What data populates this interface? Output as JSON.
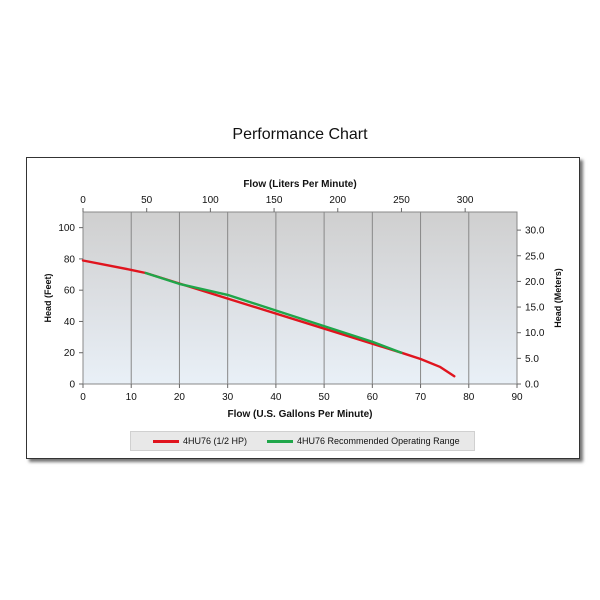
{
  "page": {
    "title": "Performance Chart"
  },
  "chart_data": {
    "type": "line",
    "xlabel": "Flow (U.S. Gallons Per Minute)",
    "x2label": "Flow (Liters Per Minute)",
    "ylabel": "Head (Feet)",
    "y2label": "Head (Meters)",
    "xlim": [
      0,
      90
    ],
    "ylim": [
      0,
      110
    ],
    "x2lim": [
      0,
      340.7
    ],
    "y2lim": [
      0,
      33.53
    ],
    "xticks": [
      "0",
      "10",
      "20",
      "30",
      "40",
      "50",
      "60",
      "70",
      "80",
      "90"
    ],
    "yticks": [
      "0",
      "20",
      "40",
      "60",
      "80",
      "100"
    ],
    "x2ticks": [
      "0",
      "50",
      "100",
      "150",
      "200",
      "250",
      "300"
    ],
    "y2ticks": [
      "0.0",
      "5.0",
      "10.0",
      "15.0",
      "20.0",
      "25.0",
      "30.0"
    ],
    "grid": true,
    "legend_position": "bottom",
    "series": [
      {
        "name": "4HU76 (1/2 HP)",
        "color": "#e0141e",
        "x": [
          0,
          5,
          10,
          13,
          66,
          70,
          74,
          77
        ],
        "y": [
          79,
          76,
          73,
          71,
          20,
          16,
          11,
          5
        ]
      },
      {
        "name": "4HU76 Recommended Operating Range",
        "color": "#1fa64a",
        "x": [
          13,
          20,
          30,
          40,
          50,
          60,
          66
        ],
        "y": [
          71,
          64,
          57,
          47,
          37,
          27,
          20
        ]
      }
    ]
  }
}
